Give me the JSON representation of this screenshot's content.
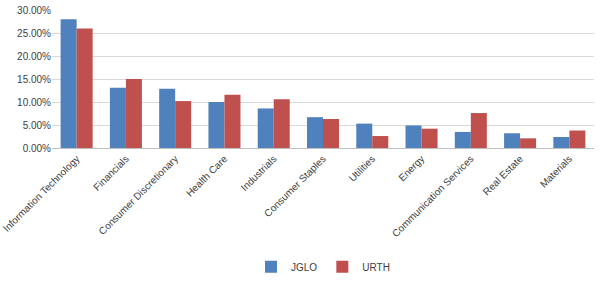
{
  "chart_data": {
    "type": "bar",
    "categories": [
      "Information Technology",
      "Financials",
      "Consumer Discretionary",
      "Health Care",
      "Industrials",
      "Consumer Staples",
      "Utilities",
      "Energy",
      "Communication Services",
      "Real Estate",
      "Materials"
    ],
    "series": [
      {
        "name": "JGLO",
        "color": "#4f81bd",
        "values": [
          28.0,
          13.1,
          12.9,
          10.0,
          8.6,
          6.7,
          5.3,
          4.9,
          3.5,
          3.2,
          2.4
        ]
      },
      {
        "name": "URTH",
        "color": "#c0504d",
        "values": [
          26.0,
          15.0,
          10.2,
          11.6,
          10.6,
          6.3,
          2.6,
          4.2,
          7.6,
          2.1,
          3.8
        ]
      }
    ],
    "ylim": [
      0,
      30
    ],
    "yticks": [
      {
        "value": 0,
        "label": "0.00%"
      },
      {
        "value": 5,
        "label": "5.00%"
      },
      {
        "value": 10,
        "label": "10.00%"
      },
      {
        "value": 15,
        "label": "15.00%"
      },
      {
        "value": 20,
        "label": "20.00%"
      },
      {
        "value": 25,
        "label": "25.00%"
      },
      {
        "value": 30,
        "label": "30.00%"
      }
    ],
    "grid": true,
    "legend": "bottom"
  }
}
